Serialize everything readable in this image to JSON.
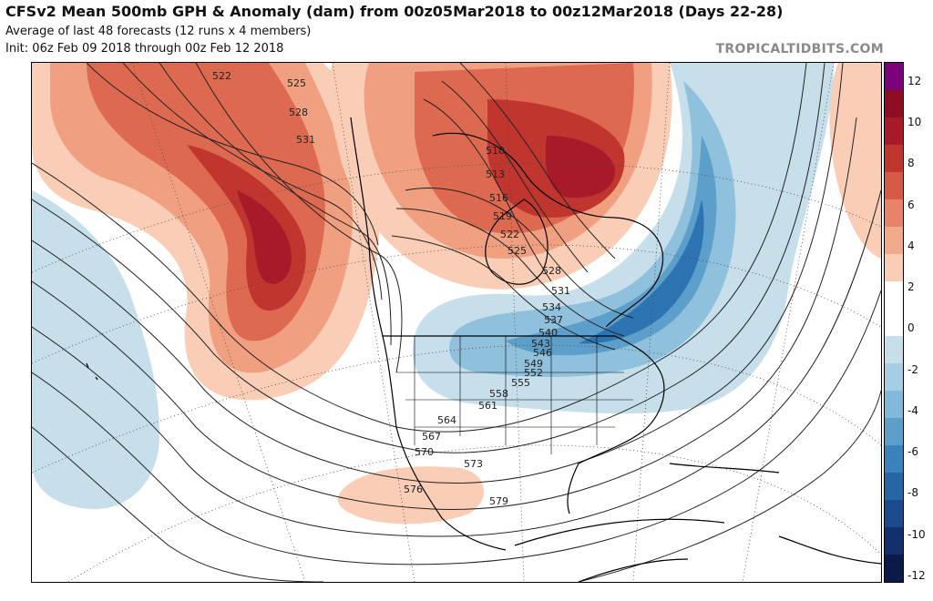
{
  "header": {
    "title": "CFSv2 Mean 500mb GPH & Anomaly (dam) from 00z05Mar2018 to 00z12Mar2018 (Days 22-28)",
    "subtitle": "Average of last 48 forecasts (12 runs x 4 members)",
    "init": "Init: 06z Feb 09 2018 through 00z Feb 12 2018"
  },
  "watermark": "TROPICALTIDBITS.COM",
  "colorbar": {
    "labels": [
      "12",
      "10",
      "8",
      "6",
      "4",
      "2",
      "0",
      "-2",
      "-4",
      "-6",
      "-8",
      "-10",
      "-12"
    ],
    "colors": [
      "#7b007b",
      "#8c0d24",
      "#a81a2a",
      "#c0352e",
      "#d65a45",
      "#e8826a",
      "#f2aa8d",
      "#f9cdb6",
      "#ffffff",
      "#ffffff",
      "#c6dfeb",
      "#a7cde3",
      "#82b8d9",
      "#5d9fcb",
      "#3a82bb",
      "#2766a5",
      "#1b4b8c",
      "#13306c",
      "#0c1a4a"
    ]
  },
  "contours": {
    "labels": [
      "522",
      "525",
      "528",
      "531",
      "510",
      "513",
      "516",
      "519",
      "522",
      "525",
      "528",
      "531",
      "534",
      "537",
      "540",
      "543",
      "546",
      "549",
      "552",
      "555",
      "558",
      "561",
      "564",
      "567",
      "570",
      "573",
      "576",
      "579"
    ]
  },
  "anomaly_colors": {
    "pos_light": "#f9cdb6",
    "pos_mid": "#f0a080",
    "pos_strong": "#dd6a50",
    "pos_deep": "#c0352e",
    "pos_max": "#a81a2a",
    "neg_light": "#c6dfeb",
    "neg_mid": "#8fc0dc",
    "neg_strong": "#5d9fcb",
    "neg_deep": "#2f74b2",
    "neg_max": "#1b4b8c"
  }
}
